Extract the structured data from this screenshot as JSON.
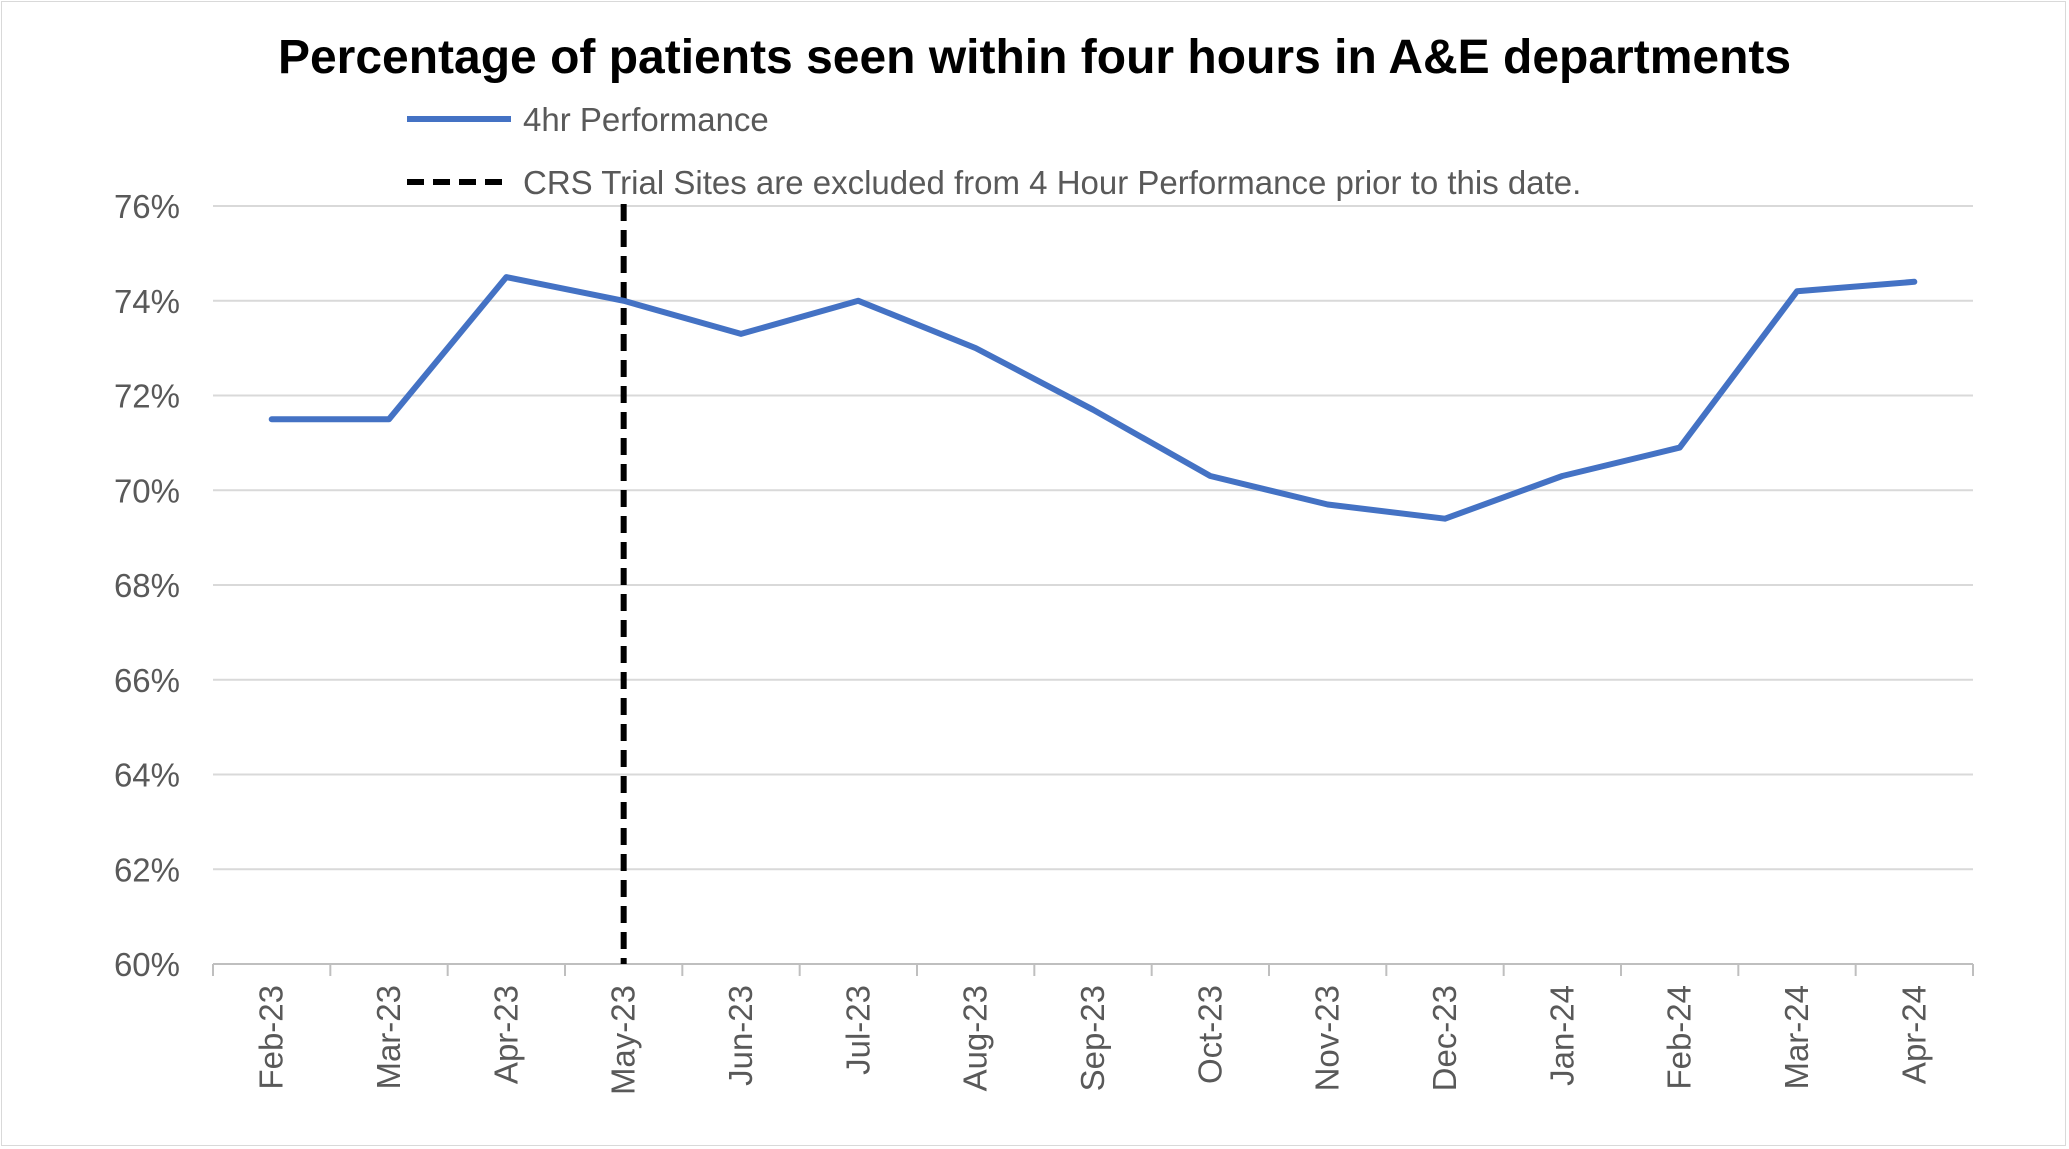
{
  "chart_data": {
    "type": "line",
    "title": "Percentage of patients seen within four hours in A&E departments",
    "categories": [
      "Feb-23",
      "Mar-23",
      "Apr-23",
      "May-23",
      "Jun-23",
      "Jul-23",
      "Aug-23",
      "Sep-23",
      "Oct-23",
      "Nov-23",
      "Dec-23",
      "Jan-24",
      "Feb-24",
      "Mar-24",
      "Apr-24"
    ],
    "series": [
      {
        "name": "4hr Performance",
        "color": "#4472C4",
        "values": [
          71.5,
          71.5,
          74.5,
          74.0,
          73.3,
          74.0,
          73.0,
          71.7,
          70.3,
          69.7,
          69.4,
          70.3,
          70.9,
          74.2,
          74.4
        ]
      }
    ],
    "marker": {
      "label": "CRS Trial Sites are excluded from 4 Hour Performance prior to this date.",
      "category": "May-23",
      "color": "#000000",
      "style": "dashed"
    },
    "yticks": [
      "60%",
      "62%",
      "64%",
      "66%",
      "68%",
      "70%",
      "72%",
      "74%",
      "76%"
    ],
    "ylim": [
      60,
      76
    ],
    "xlabel": "",
    "ylabel": "",
    "grid": true,
    "legend": "top"
  }
}
